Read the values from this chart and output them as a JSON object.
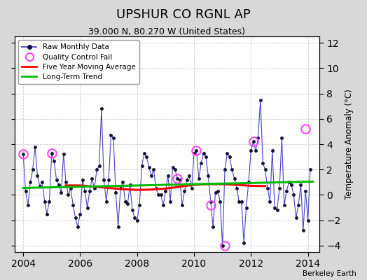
{
  "title": "UPSHUR CO RGNL AP",
  "subtitle": "39.000 N, 80.270 W (United States)",
  "ylabel": "Temperature Anomaly (°C)",
  "credit": "Berkeley Earth",
  "xlim": [
    2003.7,
    2014.4
  ],
  "ylim": [
    -4.5,
    12.5
  ],
  "yticks": [
    -4,
    -2,
    0,
    2,
    4,
    6,
    8,
    10,
    12
  ],
  "xticks": [
    2004,
    2006,
    2008,
    2010,
    2012,
    2014
  ],
  "fig_bg_color": "#d8d8d8",
  "plot_bg_color": "#ffffff",
  "raw_color": "#4444cc",
  "dot_color": "#111133",
  "ma_color": "#ff0000",
  "trend_color": "#00bb00",
  "qc_color": "#ff44ff",
  "raw_x": [
    2004.0,
    2004.083,
    2004.167,
    2004.25,
    2004.333,
    2004.417,
    2004.5,
    2004.583,
    2004.667,
    2004.75,
    2004.833,
    2004.917,
    2005.0,
    2005.083,
    2005.167,
    2005.25,
    2005.333,
    2005.417,
    2005.5,
    2005.583,
    2005.667,
    2005.75,
    2005.833,
    2005.917,
    2006.0,
    2006.083,
    2006.167,
    2006.25,
    2006.333,
    2006.417,
    2006.5,
    2006.583,
    2006.667,
    2006.75,
    2006.833,
    2006.917,
    2007.0,
    2007.083,
    2007.167,
    2007.25,
    2007.333,
    2007.417,
    2007.5,
    2007.583,
    2007.667,
    2007.75,
    2007.833,
    2007.917,
    2008.0,
    2008.083,
    2008.167,
    2008.25,
    2008.333,
    2008.417,
    2008.5,
    2008.583,
    2008.667,
    2008.75,
    2008.833,
    2008.917,
    2009.0,
    2009.083,
    2009.167,
    2009.25,
    2009.333,
    2009.417,
    2009.5,
    2009.583,
    2009.667,
    2009.75,
    2009.833,
    2009.917,
    2010.0,
    2010.083,
    2010.167,
    2010.25,
    2010.333,
    2010.417,
    2010.5,
    2010.583,
    2010.667,
    2010.75,
    2010.833,
    2010.917,
    2011.0,
    2011.083,
    2011.167,
    2011.25,
    2011.333,
    2011.417,
    2011.5,
    2011.583,
    2011.667,
    2011.75,
    2011.833,
    2011.917,
    2012.0,
    2012.083,
    2012.167,
    2012.25,
    2012.333,
    2012.417,
    2012.5,
    2012.583,
    2012.667,
    2012.75,
    2012.833,
    2012.917,
    2013.0,
    2013.083,
    2013.167,
    2013.25,
    2013.333,
    2013.417,
    2013.5,
    2013.583,
    2013.667,
    2013.75,
    2013.833,
    2013.917,
    2014.0,
    2014.083
  ],
  "raw_y": [
    3.2,
    0.3,
    -0.8,
    1.0,
    2.0,
    3.8,
    1.5,
    0.7,
    1.0,
    -0.5,
    -1.5,
    -0.5,
    3.3,
    2.7,
    1.2,
    0.8,
    0.2,
    3.2,
    1.0,
    0.0,
    0.5,
    -0.8,
    -1.8,
    -2.5,
    -1.5,
    1.2,
    0.3,
    -1.0,
    0.3,
    1.3,
    0.5,
    2.0,
    2.3,
    6.8,
    1.2,
    -0.5,
    1.2,
    4.7,
    4.5,
    0.2,
    -2.5,
    0.5,
    1.0,
    -0.5,
    -0.7,
    0.8,
    -1.2,
    -1.8,
    -2.0,
    -0.8,
    2.3,
    3.3,
    3.0,
    2.2,
    1.5,
    2.0,
    0.5,
    0.0,
    0.0,
    -0.8,
    0.3,
    1.5,
    -0.5,
    2.2,
    2.0,
    1.3,
    1.2,
    -0.8,
    0.3,
    1.2,
    1.5,
    0.5,
    3.3,
    3.5,
    1.3,
    2.5,
    3.3,
    3.0,
    1.5,
    -0.5,
    -2.5,
    0.2,
    0.3,
    -0.5,
    -4.0,
    2.0,
    3.3,
    3.0,
    2.0,
    1.3,
    0.5,
    -0.5,
    -0.5,
    -3.8,
    -1.0,
    1.0,
    3.5,
    4.2,
    3.5,
    4.5,
    7.5,
    2.5,
    2.0,
    0.5,
    -0.5,
    3.5,
    -1.0,
    -1.2,
    0.5,
    4.5,
    -0.8,
    0.3,
    1.0,
    0.8,
    0.0,
    -1.8,
    -0.8,
    0.8,
    -2.8,
    0.3,
    -2.0,
    2.0
  ],
  "qc_x": [
    2004.0,
    2005.0,
    2009.417,
    2010.083,
    2010.583,
    2011.083,
    2012.083,
    2013.917
  ],
  "qc_y": [
    3.2,
    3.3,
    1.3,
    3.5,
    -0.8,
    -4.0,
    4.2,
    5.2
  ],
  "ma_x": [
    2005.5,
    2006.0,
    2006.5,
    2007.0,
    2007.5,
    2008.0,
    2008.5,
    2009.0,
    2009.5,
    2010.0,
    2010.5,
    2011.0,
    2011.5,
    2012.0,
    2012.5
  ],
  "ma_y": [
    0.75,
    0.75,
    0.65,
    0.55,
    0.45,
    0.4,
    0.42,
    0.5,
    0.65,
    0.8,
    0.85,
    0.85,
    0.8,
    0.72,
    0.7
  ],
  "trend_x": [
    2004.0,
    2014.17
  ],
  "trend_y": [
    0.55,
    1.05
  ]
}
